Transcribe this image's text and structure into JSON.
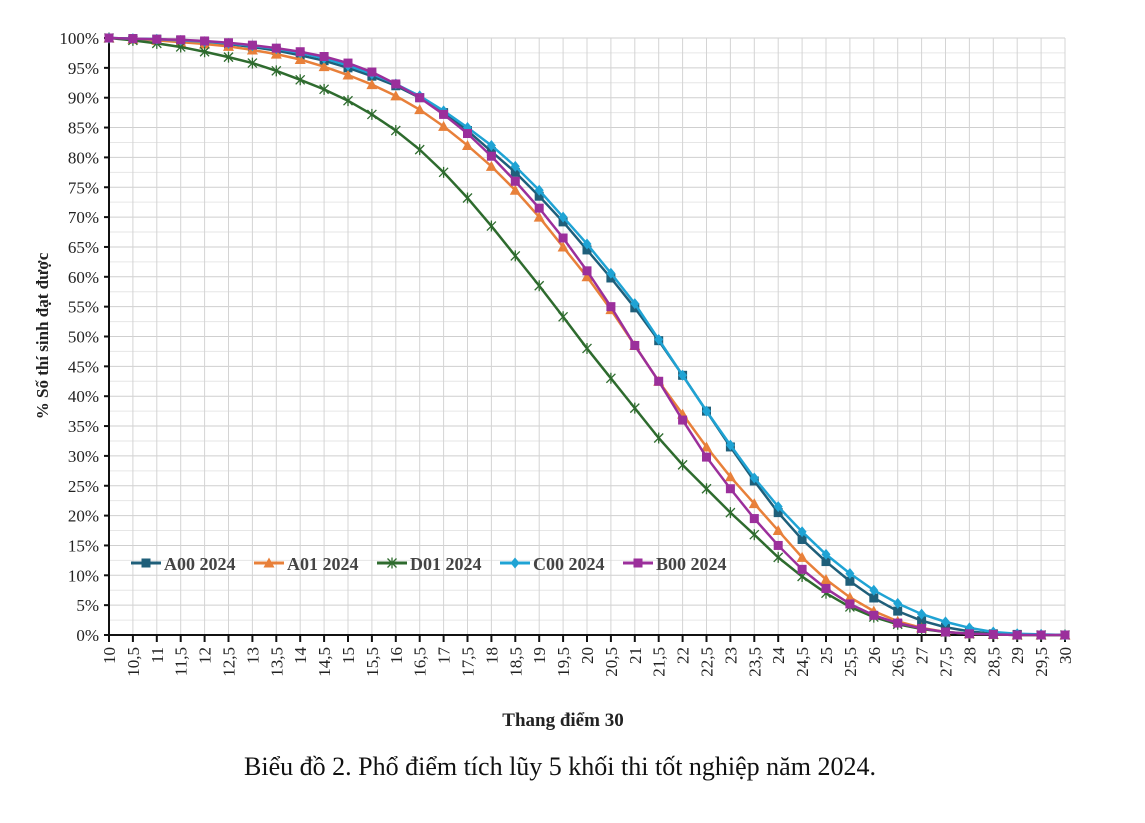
{
  "chart_data": {
    "type": "line",
    "xlabel": "Thang điểm 30",
    "ylabel": "% Số thí sinh đạt được",
    "caption": "Biểu đồ 2. Phổ điểm tích lũy 5 khối thi tốt nghiệp năm 2024.",
    "xlim": [
      10,
      30
    ],
    "ylim": [
      0,
      100
    ],
    "x_tick_step": 0.5,
    "y_tick_step": 5,
    "grid": true,
    "legend_position": "bottom-left",
    "x": [
      10,
      10.5,
      11,
      11.5,
      12,
      12.5,
      13,
      13.5,
      14,
      14.5,
      15,
      15.5,
      16,
      16.5,
      17,
      17.5,
      18,
      18.5,
      19,
      19.5,
      20,
      20.5,
      21,
      21.5,
      22,
      22.5,
      23,
      23.5,
      24,
      24.5,
      25,
      25.5,
      26,
      26.5,
      27,
      27.5,
      28,
      28.5,
      29,
      29.5,
      30
    ],
    "x_tick_labels": [
      "10",
      "10,5",
      "11",
      "11,5",
      "12",
      "12,5",
      "13",
      "13,5",
      "14",
      "14,5",
      "15",
      "15,5",
      "16",
      "16,5",
      "17",
      "17,5",
      "18",
      "18,5",
      "19",
      "19,5",
      "20",
      "20,5",
      "21",
      "21,5",
      "22",
      "22,5",
      "23",
      "23,5",
      "24",
      "24,5",
      "25",
      "25,5",
      "26",
      "26,5",
      "27",
      "27,5",
      "28",
      "28,5",
      "29",
      "29,5",
      "30"
    ],
    "y_tick_labels": [
      "0%",
      "5%",
      "10%",
      "15%",
      "20%",
      "25%",
      "30%",
      "35%",
      "40%",
      "45%",
      "50%",
      "55%",
      "60%",
      "65%",
      "70%",
      "75%",
      "80%",
      "85%",
      "90%",
      "95%",
      "100%"
    ],
    "series": [
      {
        "name": "A00 2024",
        "color": "#1f5f7a",
        "marker": "square",
        "values": [
          100,
          99.9,
          99.8,
          99.6,
          99.3,
          99,
          98.5,
          97.9,
          97.1,
          96.2,
          95,
          93.6,
          92,
          90,
          87.5,
          84.5,
          81,
          77.5,
          73.5,
          69.2,
          64.5,
          59.8,
          54.8,
          49.3,
          43.5,
          37.5,
          31.5,
          25.8,
          20.5,
          16,
          12.3,
          9,
          6.2,
          4,
          2.4,
          1.3,
          0.6,
          0.2,
          0.1,
          0,
          0
        ]
      },
      {
        "name": "A01 2024",
        "color": "#e8803a",
        "marker": "triangle",
        "values": [
          100,
          99.8,
          99.6,
          99.3,
          99,
          98.6,
          98,
          97.3,
          96.4,
          95.2,
          93.8,
          92.2,
          90.3,
          88,
          85.2,
          82,
          78.5,
          74.5,
          70,
          65,
          60,
          54.5,
          48.5,
          42.5,
          37,
          31.5,
          26.5,
          22,
          17.5,
          13,
          9.3,
          6.3,
          4,
          2.3,
          1.2,
          0.5,
          0.2,
          0.1,
          0,
          0,
          0
        ]
      },
      {
        "name": "D01 2024",
        "color": "#2e6b2e",
        "marker": "star",
        "values": [
          100,
          99.6,
          99.1,
          98.5,
          97.7,
          96.8,
          95.8,
          94.5,
          93,
          91.4,
          89.5,
          87.2,
          84.5,
          81.3,
          77.5,
          73.2,
          68.5,
          63.5,
          58.5,
          53.3,
          48,
          43,
          38,
          33,
          28.5,
          24.5,
          20.5,
          16.8,
          13,
          9.8,
          7,
          4.7,
          3,
          1.8,
          1,
          0.5,
          0.2,
          0.1,
          0,
          0,
          0
        ]
      },
      {
        "name": "C00 2024",
        "color": "#1fa3d4",
        "marker": "diamond",
        "values": [
          100,
          99.9,
          99.8,
          99.6,
          99.4,
          99.1,
          98.7,
          98.2,
          97.5,
          96.6,
          95.4,
          94,
          92.3,
          90.3,
          87.8,
          85,
          82,
          78.5,
          74.5,
          70,
          65.5,
          60.6,
          55.5,
          49.5,
          43.5,
          37.5,
          31.8,
          26.3,
          21.5,
          17.3,
          13.5,
          10.3,
          7.5,
          5.3,
          3.5,
          2.2,
          1.2,
          0.5,
          0.2,
          0.1,
          0
        ]
      },
      {
        "name": "B00 2024",
        "color": "#9b2f9b",
        "marker": "square",
        "values": [
          100,
          99.9,
          99.8,
          99.7,
          99.5,
          99.2,
          98.8,
          98.3,
          97.7,
          96.9,
          95.8,
          94.3,
          92.3,
          90,
          87.2,
          84,
          80.2,
          76,
          71.5,
          66.5,
          61,
          55,
          48.5,
          42.5,
          36,
          29.8,
          24.5,
          19.5,
          15,
          11,
          7.8,
          5.2,
          3.3,
          2,
          1.1,
          0.5,
          0.2,
          0.1,
          0,
          0,
          0
        ]
      }
    ]
  }
}
